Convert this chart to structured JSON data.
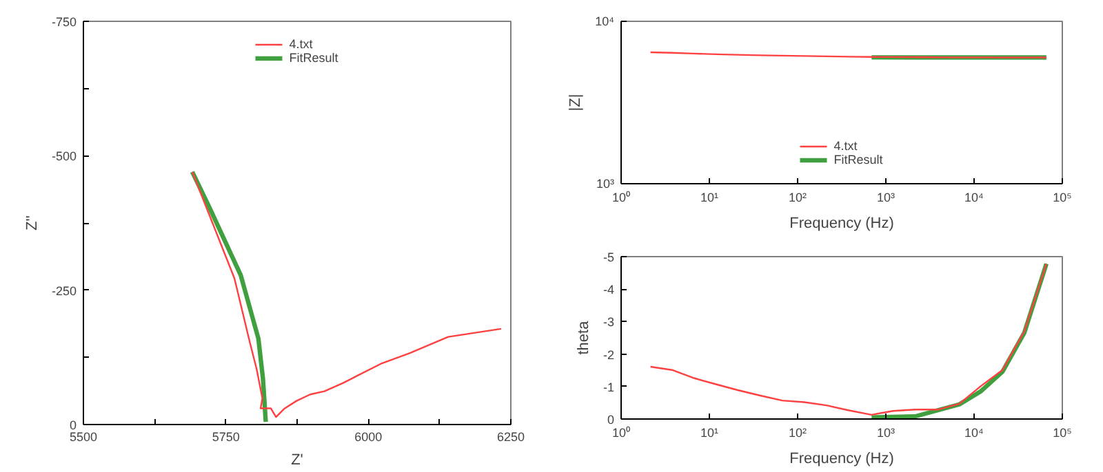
{
  "chart_data": [
    {
      "type": "line",
      "xlabel": "Z'",
      "ylabel": "Z''",
      "xlim": [
        5500,
        6250
      ],
      "ylim": [
        0,
        -750
      ],
      "xticks": [
        5500,
        {
          "value": 5625,
          "label": null
        },
        5750,
        {
          "value": 5875,
          "label": null
        },
        6000,
        {
          "value": 6125,
          "label": null
        },
        6250
      ],
      "yticks": [
        0,
        {
          "value": -125,
          "label": null
        },
        -250,
        {
          "value": -375,
          "label": null
        },
        -500,
        {
          "value": -625,
          "label": null
        },
        -750
      ],
      "grid": false,
      "legend": "top",
      "series": [
        {
          "name": "4.txt",
          "color": "#ff4040",
          "x": [
            5691,
            5765,
            5792,
            5804,
            5814,
            5811,
            5829,
            5838,
            5852,
            5874,
            5898,
            5923,
            5955,
            5981,
            6022,
            6073,
            6140,
            6233
          ],
          "values": [
            -470,
            -272,
            -153,
            -103,
            -49,
            -30,
            -30,
            -14,
            -29,
            -44,
            -56,
            -62,
            -77,
            -91,
            -113,
            -133,
            -163,
            -178
          ]
        },
        {
          "name": "FitResult",
          "color": "#40a040",
          "x": [
            5691,
            5721,
            5776,
            5807,
            5815,
            5820
          ],
          "values": [
            -470,
            -404,
            -278,
            -160,
            -86,
            -5
          ]
        }
      ]
    },
    {
      "type": "line",
      "xlabel": "Frequency (Hz)",
      "ylabel": "|Z|",
      "log": "xy",
      "xlim": [
        1,
        100000
      ],
      "ylim": [
        1000,
        10000
      ],
      "xticks": [
        {
          "value": 1,
          "label": "10⁰"
        },
        {
          "value": 10,
          "label": "10¹"
        },
        {
          "value": 100,
          "label": "10²"
        },
        {
          "value": 1000,
          "label": "10³"
        },
        {
          "value": 10000,
          "label": "10⁴"
        },
        {
          "value": 100000,
          "label": "10⁵"
        }
      ],
      "yticks": [
        {
          "value": 1000,
          "label": "10³"
        },
        {
          "value": 10000,
          "label": "10⁴"
        }
      ],
      "grid": false,
      "legend": "bottom",
      "series": [
        {
          "name": "4.txt",
          "color": "#ff4040",
          "x": [
            2.15,
            3.78,
            6.7,
            11.9,
            21,
            38,
            67,
            119,
            212,
            375,
            690,
            1210,
            2140,
            3860,
            6800,
            12000,
            21000,
            37000,
            66000
          ],
          "values": [
            6450,
            6400,
            6330,
            6270,
            6220,
            6180,
            6150,
            6120,
            6090,
            6060,
            6040,
            6030,
            6020,
            6010,
            6000,
            6000,
            5990,
            5990,
            5990
          ]
        },
        {
          "name": "FitResult",
          "color": "#40a040",
          "x": [
            690,
            2140,
            6800,
            21000,
            66000
          ],
          "values": [
            6000,
            5990,
            5990,
            5990,
            5990
          ]
        }
      ]
    },
    {
      "type": "line",
      "xlabel": "Frequency (Hz)",
      "ylabel": "theta",
      "log": "x",
      "xlim": [
        1,
        100000
      ],
      "ylim": [
        0,
        -5
      ],
      "xticks": [
        {
          "value": 1,
          "label": "10⁰"
        },
        {
          "value": 10,
          "label": "10¹"
        },
        {
          "value": 100,
          "label": "10²"
        },
        {
          "value": 1000,
          "label": "10³"
        },
        {
          "value": 10000,
          "label": "10⁴"
        },
        {
          "value": 100000,
          "label": "10⁵"
        }
      ],
      "yticks": [
        0,
        -1,
        -2,
        -3,
        -4,
        -5
      ],
      "grid": false,
      "series": [
        {
          "color": "#ff4040",
          "x": [
            2.15,
            3.78,
            6.7,
            11.9,
            21,
            38,
            67,
            119,
            212,
            375,
            690,
            1210,
            2140,
            3860,
            6800,
            12000,
            21000,
            37000,
            66000
          ],
          "values": [
            -1.61,
            -1.51,
            -1.26,
            -1.07,
            -0.89,
            -0.72,
            -0.57,
            -0.52,
            -0.42,
            -0.27,
            -0.13,
            -0.25,
            -0.29,
            -0.29,
            -0.47,
            -1.02,
            -1.51,
            -2.7,
            -4.78
          ]
        },
        {
          "color": "#40a040",
          "x": [
            690,
            2140,
            6800,
            12000,
            21000,
            37000,
            66000
          ],
          "values": [
            -0.05,
            -0.08,
            -0.45,
            -0.86,
            -1.46,
            -2.65,
            -4.78
          ]
        }
      ]
    }
  ]
}
